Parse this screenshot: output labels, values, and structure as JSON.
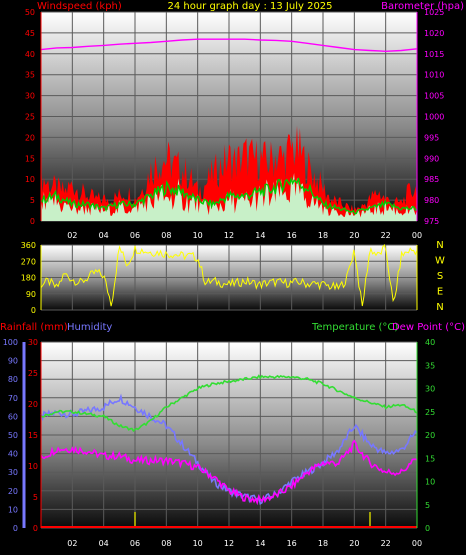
{
  "header": {
    "left_title": "Windspeed (kph)",
    "center_title": "24 hour graph day : 13 July 2025",
    "right_title": "Barometer (hpa)"
  },
  "colors": {
    "wind_speed": "#ff0000",
    "wind_avg": "#00cc00",
    "wind_area": "#c8f0c8",
    "barometer": "#ff00ff",
    "direction": "#ffff00",
    "rain": "#ff0000",
    "humidity": "#7878ff",
    "temperature": "#33dd33",
    "dew_point": "#ff00ff",
    "rain_marks": "#cccc00"
  },
  "x_ticks": [
    "02",
    "04",
    "06",
    "08",
    "10",
    "12",
    "14",
    "16",
    "18",
    "20",
    "22",
    "00"
  ],
  "chart_data": [
    {
      "type": "line",
      "title": "24 hour graph day : 13 July 2025",
      "xlabel": "",
      "ylabel": "Windspeed (kph)",
      "y2label": "Barometer (hpa)",
      "xlim": [
        0,
        24
      ],
      "ylim": [
        0,
        50
      ],
      "y_ticks": [
        "0",
        "5",
        "10",
        "15",
        "20",
        "25",
        "30",
        "35",
        "40",
        "45",
        "50"
      ],
      "y2lim": [
        975,
        1025
      ],
      "y2_ticks": [
        "975",
        "980",
        "985",
        "990",
        "995",
        "1000",
        "1005",
        "1010",
        "1015",
        "1020",
        "1025"
      ],
      "grid": true,
      "series": [
        {
          "name": "Windspeed (kph)",
          "role": "gust",
          "x": [
            0,
            0.5,
            1,
            1.5,
            2,
            2.5,
            3,
            3.5,
            4,
            4.5,
            5,
            5.5,
            6,
            6.5,
            7,
            7.5,
            8,
            8.5,
            9,
            9.5,
            10,
            10.5,
            11,
            11.5,
            12,
            12.5,
            13,
            13.5,
            14,
            14.5,
            15,
            15.5,
            16,
            16.5,
            17,
            17.5,
            18,
            18.5,
            19,
            19.5,
            20,
            20.5,
            21,
            21.5,
            22,
            22.5,
            23,
            23.5,
            24
          ],
          "values": [
            12,
            10,
            9,
            8,
            10,
            8,
            7,
            6,
            6,
            6,
            7,
            8,
            6,
            9,
            14,
            16,
            17,
            15,
            14,
            12,
            8,
            10,
            13,
            15,
            17,
            16,
            18,
            17,
            17,
            16,
            18,
            17,
            20,
            19,
            15,
            12,
            9,
            6,
            5,
            4,
            3,
            4,
            6,
            8,
            6,
            5,
            5,
            8,
            9
          ]
        },
        {
          "name": "Average",
          "role": "average",
          "x": [
            0,
            1,
            2,
            3,
            4,
            5,
            6,
            7,
            8,
            9,
            10,
            11,
            12,
            13,
            14,
            15,
            16,
            17,
            18,
            19,
            20,
            21,
            22,
            23,
            24
          ],
          "values": [
            5,
            6,
            4,
            4,
            3,
            4,
            4,
            6,
            8,
            7,
            5,
            4,
            6,
            6,
            7,
            8,
            10,
            8,
            4,
            3,
            2,
            3,
            4,
            3,
            3
          ]
        },
        {
          "name": "Barometer (hpa)",
          "role": "barometer",
          "x": [
            0,
            1,
            2,
            3,
            4,
            5,
            6,
            7,
            8,
            9,
            10,
            11,
            12,
            13,
            14,
            15,
            16,
            17,
            18,
            19,
            20,
            21,
            22,
            23,
            24
          ],
          "values": [
            1016,
            1016.4,
            1016.5,
            1016.8,
            1017,
            1017.3,
            1017.5,
            1017.7,
            1018,
            1018.3,
            1018.5,
            1018.5,
            1018.5,
            1018.5,
            1018.3,
            1018.2,
            1018,
            1017.5,
            1017,
            1016.5,
            1016,
            1015.8,
            1015.6,
            1015.8,
            1016.2
          ]
        }
      ]
    },
    {
      "type": "line",
      "title": "",
      "ylabel": "",
      "xlim": [
        0,
        24
      ],
      "ylim": [
        0,
        360
      ],
      "y_ticks": [
        "0",
        "90",
        "180",
        "270",
        "360"
      ],
      "compass_labels": [
        "N",
        "W",
        "S",
        "E",
        "N"
      ],
      "grid": true,
      "series": [
        {
          "name": "Wind direction",
          "role": "direction",
          "x": [
            0,
            0.5,
            1,
            1.5,
            2,
            2.5,
            3,
            3.5,
            4,
            4.5,
            5,
            5.5,
            6,
            6.5,
            7,
            7.5,
            8,
            8.5,
            9,
            9.5,
            10,
            10.5,
            11,
            11.5,
            12,
            12.5,
            13,
            13.5,
            14,
            14.5,
            15,
            15.5,
            16,
            16.5,
            17,
            17.5,
            18,
            18.5,
            19,
            19.5,
            20,
            20.5,
            21,
            21.5,
            22,
            22.5,
            23,
            23.5,
            24
          ],
          "values": [
            140,
            160,
            120,
            200,
            170,
            150,
            180,
            210,
            190,
            30,
            350,
            250,
            340,
            330,
            320,
            320,
            310,
            310,
            300,
            300,
            290,
            150,
            160,
            150,
            140,
            150,
            160,
            150,
            140,
            150,
            155,
            150,
            150,
            155,
            145,
            145,
            140,
            130,
            120,
            170,
            340,
            10,
            340,
            300,
            350,
            20,
            300,
            330,
            330
          ]
        }
      ]
    },
    {
      "type": "line",
      "title": "",
      "ylabel": "Rainfall (mm)",
      "y_axis_humidity": "Humidity",
      "y2label": "Temperature (°C)",
      "y2label_dew": "Dew Point (°C)",
      "xlim": [
        0,
        24
      ],
      "humidity_lim": [
        0,
        100
      ],
      "humidity_ticks": [
        "0",
        "10",
        "20",
        "30",
        "40",
        "50",
        "60",
        "70",
        "80",
        "90",
        "100"
      ],
      "rain_lim": [
        0,
        30
      ],
      "rain_ticks": [
        "0",
        "5",
        "10",
        "15",
        "20",
        "25",
        "30"
      ],
      "temp_lim": [
        0,
        40
      ],
      "temp_ticks": [
        "0",
        "5",
        "10",
        "15",
        "20",
        "25",
        "30",
        "35",
        "40"
      ],
      "grid": true,
      "series": [
        {
          "name": "Humidity",
          "role": "humidity",
          "x": [
            0,
            1,
            2,
            3,
            4,
            5,
            6,
            7,
            8,
            9,
            10,
            11,
            12,
            13,
            14,
            15,
            16,
            17,
            18,
            19,
            20,
            21,
            22,
            23,
            24
          ],
          "values": [
            60,
            62,
            61,
            63,
            65,
            70,
            65,
            60,
            55,
            45,
            35,
            25,
            20,
            17,
            15,
            18,
            25,
            30,
            35,
            42,
            55,
            45,
            40,
            42,
            52
          ]
        },
        {
          "name": "Temperature (°C)",
          "role": "temperature",
          "x": [
            0,
            1,
            2,
            3,
            4,
            5,
            6,
            7,
            8,
            9,
            10,
            11,
            12,
            13,
            14,
            15,
            16,
            17,
            18,
            19,
            20,
            21,
            22,
            23,
            24
          ],
          "values": [
            24,
            25,
            25,
            24.5,
            24,
            22,
            21,
            23,
            26,
            28,
            30,
            31,
            31.5,
            32,
            32.5,
            32.5,
            32.5,
            32,
            31,
            29.5,
            28,
            27,
            26,
            26.5,
            25
          ]
        },
        {
          "name": "Dew Point (°C)",
          "role": "dewpoint",
          "x": [
            0,
            1,
            2,
            3,
            4,
            5,
            6,
            7,
            8,
            9,
            10,
            11,
            12,
            13,
            14,
            15,
            16,
            17,
            18,
            19,
            20,
            21,
            22,
            23,
            24
          ],
          "values": [
            15,
            17,
            17,
            16.5,
            15.5,
            15.5,
            14.5,
            14.5,
            14.5,
            14,
            13,
            11,
            8,
            6.5,
            6,
            7,
            9,
            12,
            14,
            14,
            18,
            14,
            12,
            12,
            15
          ]
        },
        {
          "name": "Rainfall (mm)",
          "role": "rain",
          "x": [
            0,
            24
          ],
          "values": [
            0,
            0
          ]
        }
      ]
    }
  ]
}
